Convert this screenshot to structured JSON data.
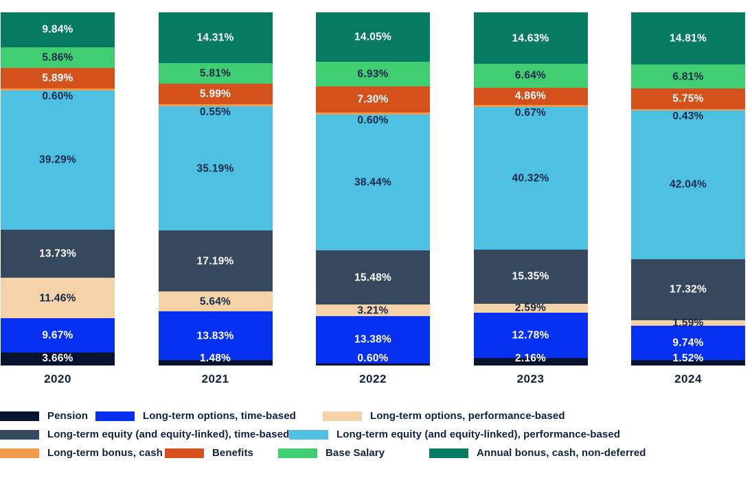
{
  "chart_data": {
    "type": "bar",
    "variant": "stacked-100-percent-column",
    "title": "",
    "xlabel": "",
    "ylabel": "",
    "unit": "%",
    "value_decimals": 2,
    "gridlines": false,
    "y_axis_visible": false,
    "legend_position": "bottom",
    "categories": [
      "2020",
      "2021",
      "2022",
      "2023",
      "2024"
    ],
    "series": [
      {
        "name": "Pension",
        "color": "#081330",
        "label_color": "#ffffff",
        "label_placement": "bottom",
        "values": [
          3.66,
          1.48,
          0.6,
          2.16,
          1.52
        ]
      },
      {
        "name": "Long-term options, time-based",
        "color": "#0630f0",
        "label_color": "#ffffff",
        "label_placement": "center",
        "values": [
          9.67,
          13.83,
          13.38,
          12.78,
          9.74
        ]
      },
      {
        "name": "Long-term options, performance-based",
        "color": "#f2d2a6",
        "label_color": "#13294b",
        "label_placement": "center",
        "values": [
          11.46,
          5.64,
          3.21,
          2.59,
          1.59
        ]
      },
      {
        "name": "Long-term equity (and equity-linked), time-based",
        "color": "#36485e",
        "label_color": "#ffffff",
        "label_placement": "center",
        "values": [
          13.73,
          17.19,
          15.48,
          15.35,
          17.32
        ]
      },
      {
        "name": "Long-term equity (and equity-linked), performance-based",
        "color": "#4ec1e3",
        "label_color": "#13294b",
        "label_placement": "center",
        "values": [
          39.29,
          35.19,
          38.44,
          40.32,
          42.04
        ]
      },
      {
        "name": "Long-term bonus, cash",
        "color": "#f2994c",
        "label_color": "#13294b",
        "label_placement": "below",
        "values": [
          0.6,
          0.55,
          0.6,
          0.67,
          0.43
        ]
      },
      {
        "name": "Benefits",
        "color": "#d4511c",
        "label_color": "#ffffff",
        "label_placement": "center",
        "values": [
          5.89,
          5.99,
          7.3,
          4.86,
          5.75
        ]
      },
      {
        "name": "Base Salary",
        "color": "#41ce72",
        "label_color": "#13294b",
        "label_placement": "center",
        "values": [
          5.86,
          5.81,
          6.93,
          6.64,
          6.81
        ]
      },
      {
        "name": "Annual bonus, cash, non-deferred",
        "color": "#077a62",
        "label_color": "#ffffff",
        "label_placement": "center",
        "values": [
          9.84,
          14.31,
          14.05,
          14.63,
          14.81
        ]
      }
    ],
    "legend_rows": [
      [
        0,
        1,
        2
      ],
      [
        3,
        4
      ],
      [
        5,
        6,
        7,
        8
      ]
    ]
  },
  "colors": {
    "background": "#ffffff",
    "axis_text": "#0c2240",
    "label_dark": "#13294b",
    "label_light": "#ffffff"
  }
}
